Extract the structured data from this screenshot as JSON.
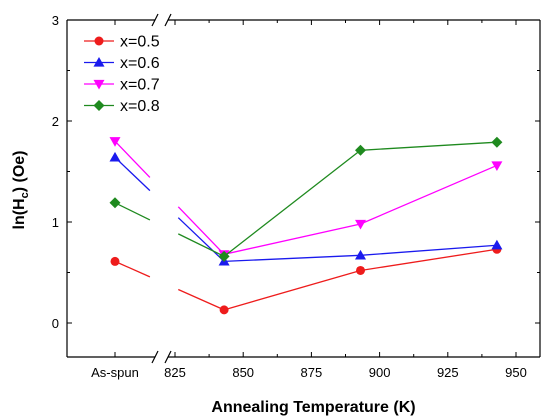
{
  "chart_data": {
    "type": "line",
    "xlabel": "Annealing Temperature (K)",
    "ylabel_main": "ln(H",
    "ylabel_sub": "c",
    "ylabel_tail": ") (Oe)",
    "ylim": [
      -0.35,
      3
    ],
    "yticks": [
      0,
      1,
      2,
      3
    ],
    "xlim": [
      808,
      958
    ],
    "xticks": [
      {
        "value": 775,
        "label": "As-spun"
      },
      {
        "value": 825,
        "label": "825"
      },
      {
        "value": 850,
        "label": "850"
      },
      {
        "value": 875,
        "label": "875"
      },
      {
        "value": 900,
        "label": "900"
      },
      {
        "value": 925,
        "label": "925"
      },
      {
        "value": 950,
        "label": "950"
      }
    ],
    "axis_break": true,
    "legend_position": "top-left",
    "series": [
      {
        "name": "x=0.5",
        "color": "#ee1c1c",
        "marker": "circle",
        "x": [
          "As-spun",
          843,
          893,
          943
        ],
        "values": [
          0.61,
          0.13,
          0.52,
          0.73
        ]
      },
      {
        "name": "x=0.6",
        "color": "#1a1aee",
        "marker": "triangle-up",
        "x": [
          "As-spun",
          843,
          893,
          943
        ],
        "values": [
          1.64,
          0.61,
          0.67,
          0.77
        ]
      },
      {
        "name": "x=0.7",
        "color": "#ff00ff",
        "marker": "triangle-down",
        "x": [
          "As-spun",
          843,
          893,
          943
        ],
        "values": [
          1.8,
          0.68,
          0.98,
          1.56
        ]
      },
      {
        "name": "x=0.8",
        "color": "#1f8a1f",
        "marker": "diamond",
        "x": [
          "As-spun",
          843,
          893,
          943
        ],
        "values": [
          1.19,
          0.66,
          1.71,
          1.79
        ]
      }
    ]
  }
}
